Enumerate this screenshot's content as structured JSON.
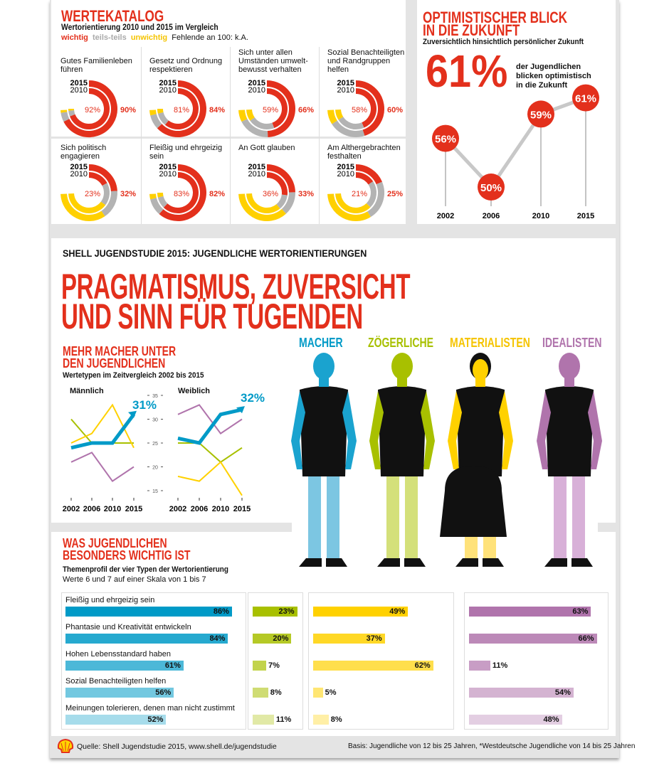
{
  "wertekatalog": {
    "title": "WERTEKATALOG",
    "subtitle": "Wertorientierung 2010 und 2015 im Vergleich",
    "legend": {
      "wichtig": "wichtig",
      "teils": "teils-teils",
      "unwichtig": "unwichtig",
      "note": "Fehlende an 100: k.A."
    },
    "year_outer": "2015",
    "year_inner": "2010"
  },
  "optimism": {
    "title1": "OPTIMISTISCHER BLICK",
    "title2": "IN DIE ZUKUNFT",
    "subtitle": "Zuversichtlich hinsichtlich persönlicher Zukunft",
    "big": "61%",
    "text1": "der Jugendlichen",
    "text2": "blicken optimistisch",
    "text3": "in die Zukunft"
  },
  "main": {
    "kicker": "SHELL JUGENDSTUDIE 2015: JUGENDLICHE WERTORIENTIERUNGEN",
    "headline1": "PRAGMATISMUS, ZUVERSICHT",
    "headline2": "UND SINN FÜR TUGENDEN",
    "types": [
      "MACHER",
      "ZÖGERLICHE",
      "MATERIALISTEN",
      "IDEALISTEN"
    ]
  },
  "trend": {
    "title1": "MEHR MACHER UNTER",
    "title2": "DEN JUGENDLICHEN",
    "subtitle": "Wertetypen im Zeitvergleich 2002 bis 2015"
  },
  "profile": {
    "title1": "WAS JUGENDLICHEN",
    "title2": "BESONDERS WICHTIG IST",
    "subtitle": "Themenprofil der vier Typen der Wertorientierung",
    "note": "Werte 6 und 7 auf einer Skala von 1 bis 7"
  },
  "footer": {
    "source": "Quelle: Shell Jugendstudie 2015, www.shell.de/jugendstudie",
    "basis": "Basis: Jugendliche von 12 bis 25 Jahren, *Westdeutsche Jugendliche von 14 bis 25 Jahren"
  },
  "colors": {
    "red": "#e3301c",
    "gray": "#b3b3b3",
    "yellow": "#ffd000",
    "macher": "#009ac7",
    "zoegerliche": "#a8c000",
    "materialisten": "#ffd100",
    "idealisten": "#b074ac"
  },
  "chart_data": [
    {
      "type": "pie",
      "title": "WERTEKATALOG",
      "series_names": [
        "wichtig",
        "teils-teils",
        "unwichtig"
      ],
      "items": [
        {
          "label": "Gutes Familienleben führen",
          "y2015": [
            90,
            7,
            2
          ],
          "y2010": [
            92,
            6,
            2
          ],
          "l2015": "90%",
          "l2010": "92%"
        },
        {
          "label": "Gesetz und Ordnung respektieren",
          "y2015": [
            84,
            11,
            4
          ],
          "y2010": [
            81,
            14,
            5
          ],
          "l2015": "84%",
          "l2010": "81%"
        },
        {
          "label": "Sich unter allen Umständen umwelt-bewusst verhalten",
          "y2015": [
            66,
            24,
            9
          ],
          "y2010": [
            59,
            28,
            12
          ],
          "l2015": "66%",
          "l2010": "59%"
        },
        {
          "label": "Sozial Benachteiligten und Randgruppen helfen",
          "y2015": [
            60,
            28,
            11
          ],
          "y2010": [
            58,
            30,
            11
          ],
          "l2015": "60%",
          "l2010": "58%"
        },
        {
          "label": "Sich politisch engagieren",
          "y2015": [
            32,
            22,
            45
          ],
          "y2010": [
            23,
            24,
            52
          ],
          "l2015": "32%",
          "l2010": "23%"
        },
        {
          "label": "Fleißig und ehrgeizig sein",
          "y2015": [
            82,
            13,
            4
          ],
          "y2010": [
            83,
            12,
            5
          ],
          "l2015": "82%",
          "l2010": "83%"
        },
        {
          "label": "An Gott glauben",
          "y2015": [
            33,
            18,
            48
          ],
          "y2010": [
            36,
            16,
            47
          ],
          "l2015": "33%",
          "l2010": "36%"
        },
        {
          "label": "Am Althergebrachten festhalten",
          "y2015": [
            25,
            30,
            44
          ],
          "y2010": [
            21,
            29,
            49
          ],
          "l2015": "25%",
          "l2010": "21%"
        }
      ]
    },
    {
      "type": "line",
      "title": "Optimistischer Blick in die Zukunft",
      "x": [
        "2002",
        "2006",
        "2010",
        "2015"
      ],
      "values": [
        56,
        50,
        59,
        61
      ],
      "labels": [
        "56%",
        "50%",
        "59%",
        "61%"
      ]
    },
    {
      "type": "line",
      "title": "Männlich",
      "x": [
        "2002",
        "2006",
        "2010",
        "2015"
      ],
      "ylim": [
        15,
        35
      ],
      "yticks": [
        "35",
        "30",
        "25",
        "20",
        "15"
      ],
      "end_label": "31%",
      "series": [
        {
          "name": "MACHER",
          "values": [
            24,
            25,
            25,
            31
          ]
        },
        {
          "name": "ZÖGERLICHE",
          "values": [
            30,
            25,
            25,
            25
          ]
        },
        {
          "name": "MATERIALISTEN",
          "values": [
            25,
            27,
            33,
            24
          ]
        },
        {
          "name": "IDEALISTEN",
          "values": [
            21,
            23,
            17,
            20
          ]
        }
      ]
    },
    {
      "type": "line",
      "title": "Weiblich",
      "x": [
        "2002",
        "2006",
        "2010",
        "2015"
      ],
      "ylim": [
        15,
        35
      ],
      "end_label": "32%",
      "series": [
        {
          "name": "MACHER",
          "values": [
            26,
            25,
            31,
            32
          ]
        },
        {
          "name": "ZÖGERLICHE",
          "values": [
            25,
            25,
            21,
            24
          ]
        },
        {
          "name": "MATERIALISTEN",
          "values": [
            18,
            17,
            21,
            14
          ]
        },
        {
          "name": "IDEALISTEN",
          "values": [
            31,
            33,
            27,
            30
          ]
        }
      ]
    },
    {
      "type": "bar",
      "title": "Themenprofil",
      "categories": [
        "Fleißig und ehrgeizig sein",
        "Phantasie und Kreativität entwickeln",
        "Hohen Lebensstandard haben",
        "Sozial Benachteiligten helfen",
        "Meinungen tolerieren, denen man nicht zustimmt"
      ],
      "series": [
        {
          "name": "MACHER",
          "values": [
            86,
            84,
            61,
            56,
            52
          ]
        },
        {
          "name": "ZÖGERLICHE",
          "values": [
            23,
            20,
            7,
            8,
            11
          ]
        },
        {
          "name": "MATERIALISTEN",
          "values": [
            49,
            37,
            62,
            5,
            8
          ]
        },
        {
          "name": "IDEALISTEN",
          "values": [
            63,
            66,
            11,
            54,
            48
          ]
        }
      ]
    }
  ]
}
